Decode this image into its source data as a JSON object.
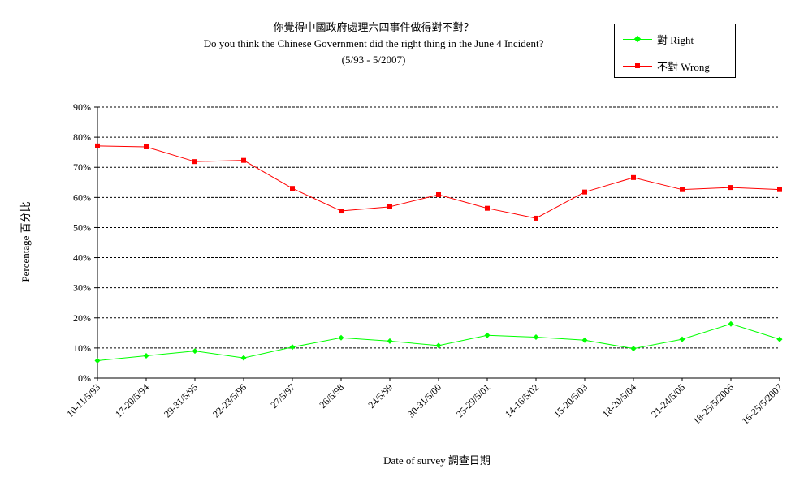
{
  "chart_data": {
    "type": "line",
    "title": "你覺得中國政府處理六四事件做得對不對？",
    "subtitle": "Do you think the Chinese Government did the right thing in the June 4 Incident?",
    "period": "(5/93 - 5/2007)",
    "xlabel": "Date of survey  調查日期",
    "ylabel": "Percentage  百分比",
    "ylim": [
      0,
      90
    ],
    "yticks": [
      "0%",
      "10%",
      "20%",
      "30%",
      "40%",
      "50%",
      "60%",
      "70%",
      "80%",
      "90%"
    ],
    "grid": "horizontal dashed",
    "legend_position": "top-right",
    "categories": [
      "10-11/5/93",
      "17-20/5/94",
      "29-31/5/95",
      "22-23/5/96",
      "27/5/97",
      "26/5/98",
      "24/5/99",
      "30-31/5/00",
      "25-29/5/01",
      "14-16/5/02",
      "15-20/5/03",
      "18-20/5/04",
      "21-24/5/05",
      "18-25/5/2006",
      "16-25/5/2007"
    ],
    "series": [
      {
        "name": "對 Right",
        "color": "#00ff00",
        "marker": "diamond",
        "values": [
          5.8,
          7.4,
          9.0,
          6.7,
          10.3,
          13.4,
          12.3,
          10.8,
          14.2,
          13.6,
          12.6,
          9.8,
          12.9,
          18.0,
          12.9
        ]
      },
      {
        "name": "不對 Wrong",
        "color": "#ff0000",
        "marker": "square",
        "values": [
          77.1,
          76.8,
          71.9,
          72.3,
          63.0,
          55.5,
          56.9,
          60.9,
          56.4,
          53.1,
          61.8,
          66.6,
          62.6,
          63.3,
          62.6
        ]
      }
    ]
  }
}
